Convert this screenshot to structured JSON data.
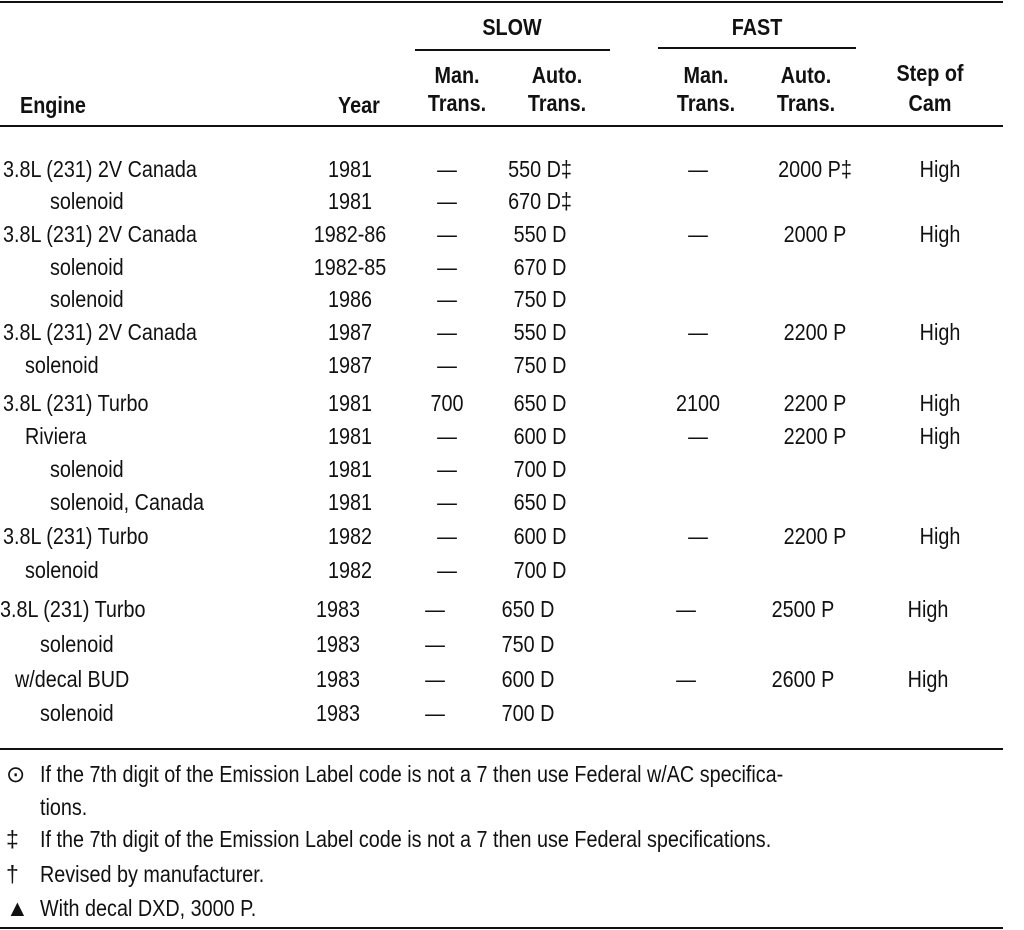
{
  "header": {
    "slow": "SLOW",
    "fast": "FAST",
    "engine": "Engine",
    "year": "Year",
    "slow_man": [
      "Man.",
      "Trans."
    ],
    "slow_auto": [
      "Auto.",
      "Trans."
    ],
    "fast_man": [
      "Man.",
      "Trans."
    ],
    "fast_auto": [
      "Auto.",
      "Trans."
    ],
    "step": [
      "Step of",
      "Cam"
    ]
  },
  "rows": [
    [
      "3.8L (231) 2V Canada",
      "1981",
      "—",
      "550 D‡",
      "—",
      "2000 P‡",
      "High"
    ],
    [
      "solenoid",
      "1981",
      "—",
      "670 D‡",
      "",
      "",
      ""
    ],
    [
      "3.8L (231) 2V Canada",
      "1982-86",
      "—",
      "550 D",
      "—",
      "2000 P",
      "High"
    ],
    [
      "solenoid",
      "1982-85",
      "—",
      "670 D",
      "",
      "",
      ""
    ],
    [
      "solenoid",
      "1986",
      "—",
      "750 D",
      "",
      "",
      ""
    ],
    [
      "3.8L (231) 2V Canada",
      "1987",
      "—",
      "550 D",
      "—",
      "2200 P",
      "High"
    ],
    [
      "solenoid",
      "1987",
      "—",
      "750 D",
      "",
      "",
      ""
    ],
    [
      "3.8L (231) Turbo",
      "1981",
      "700",
      "650 D",
      "2100",
      "2200 P",
      "High"
    ],
    [
      "Riviera",
      "1981",
      "—",
      "600 D",
      "—",
      "2200 P",
      "High"
    ],
    [
      "solenoid",
      "1981",
      "—",
      "700 D",
      "",
      "",
      ""
    ],
    [
      "solenoid, Canada",
      "1981",
      "—",
      "650 D",
      "",
      "",
      ""
    ],
    [
      "3.8L (231) Turbo",
      "1982",
      "—",
      "600 D",
      "—",
      "2200 P",
      "High"
    ],
    [
      "solenoid",
      "1982",
      "—",
      "700 D",
      "",
      "",
      ""
    ],
    [
      "3.8L (231) Turbo",
      "1983",
      "—",
      "650 D",
      "—",
      "2500 P",
      "High"
    ],
    [
      "solenoid",
      "1983",
      "—",
      "750 D",
      "",
      "",
      ""
    ],
    [
      "w/decal BUD",
      "1983",
      "—",
      "600 D",
      "—",
      "2600 P",
      "High"
    ],
    [
      "solenoid",
      "1983",
      "—",
      "700 D",
      "",
      "",
      ""
    ]
  ],
  "footnotes": [
    {
      "symbol": "⊙",
      "text": "If the 7th digit of the Emission Label code is not a 7 then use Federal w/AC specifica-"
    },
    {
      "symbol": "",
      "text": "tions."
    },
    {
      "symbol": "‡",
      "text": "If the 7th digit of the Emission Label code is not a 7 then use Federal specifications."
    },
    {
      "symbol": "†",
      "text": "Revised by manufacturer."
    },
    {
      "symbol": "▲",
      "text": "With decal DXD, 3000 P."
    }
  ]
}
